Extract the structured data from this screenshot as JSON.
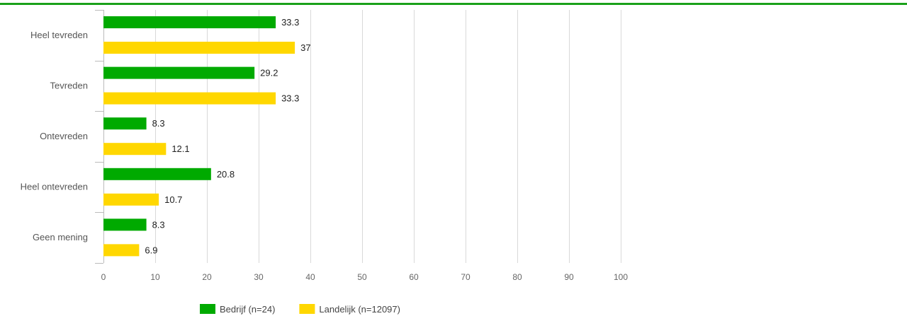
{
  "chart_data": {
    "type": "bar",
    "orientation": "horizontal",
    "categories": [
      "Heel tevreden",
      "Tevreden",
      "Ontevreden",
      "Heel ontevreden",
      "Geen mening"
    ],
    "series": [
      {
        "name": "Bedrijf (n=24)",
        "color": "#00aa00",
        "values": [
          33.3,
          29.2,
          8.3,
          20.8,
          8.3
        ]
      },
      {
        "name": "Landelijk (n=12097)",
        "color": "#ffd700",
        "values": [
          37,
          33.3,
          12.1,
          10.7,
          6.9
        ]
      }
    ],
    "xlim": [
      0,
      100
    ],
    "xticks": [
      0,
      10,
      20,
      30,
      40,
      50,
      60,
      70,
      80,
      90,
      100
    ],
    "grid": true,
    "legend_position": "bottom",
    "data_labels": true
  },
  "colors": {
    "top_rule": "#1aa11a",
    "grid": "#d9d9d9",
    "axis": "#bbbbbb"
  }
}
